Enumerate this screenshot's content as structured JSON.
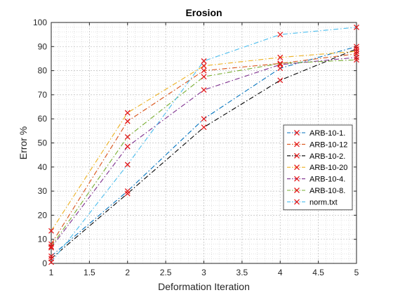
{
  "chart_data": {
    "type": "line",
    "title": "Erosion",
    "xlabel": "Deformation Iteration",
    "ylabel": "Error %",
    "xlim": [
      1,
      5
    ],
    "ylim": [
      0,
      100
    ],
    "xticks": [
      "1",
      "1.5",
      "2",
      "2.5",
      "3",
      "3.5",
      "4",
      "4.5",
      "5"
    ],
    "yticks": [
      "0",
      "10",
      "20",
      "30",
      "40",
      "50",
      "60",
      "70",
      "80",
      "90",
      "100"
    ],
    "grid": true,
    "minor_grid": true,
    "legend_position": "right",
    "marker": "x",
    "marker_color": "#e41a1c",
    "line_style": "dash-dot",
    "x": [
      1,
      2,
      3,
      4,
      5
    ],
    "series": [
      {
        "name": "ARB-10-1.",
        "color": "#0072BD",
        "values": [
          3,
          30,
          60,
          81,
          90
        ]
      },
      {
        "name": "ARB-10-12",
        "color": "#D95319",
        "values": [
          8,
          59,
          80,
          83,
          87
        ]
      },
      {
        "name": "ARB-10-2.",
        "color": "#000000",
        "values": [
          2,
          29,
          56.5,
          76,
          89
        ]
      },
      {
        "name": "ARB-10-20",
        "color": "#EDB120",
        "values": [
          13.5,
          62.5,
          82,
          85.5,
          88
        ]
      },
      {
        "name": "ARB-10-4.",
        "color": "#7E2F8E",
        "values": [
          6.5,
          48.5,
          72,
          82.5,
          85.5
        ]
      },
      {
        "name": "ARB-10-8.",
        "color": "#77AC30",
        "values": [
          7,
          52.5,
          77.5,
          83,
          84.5
        ]
      },
      {
        "name": "norm.txt",
        "color": "#4DBEEE",
        "values": [
          0.5,
          41,
          84,
          95,
          98
        ]
      }
    ]
  }
}
